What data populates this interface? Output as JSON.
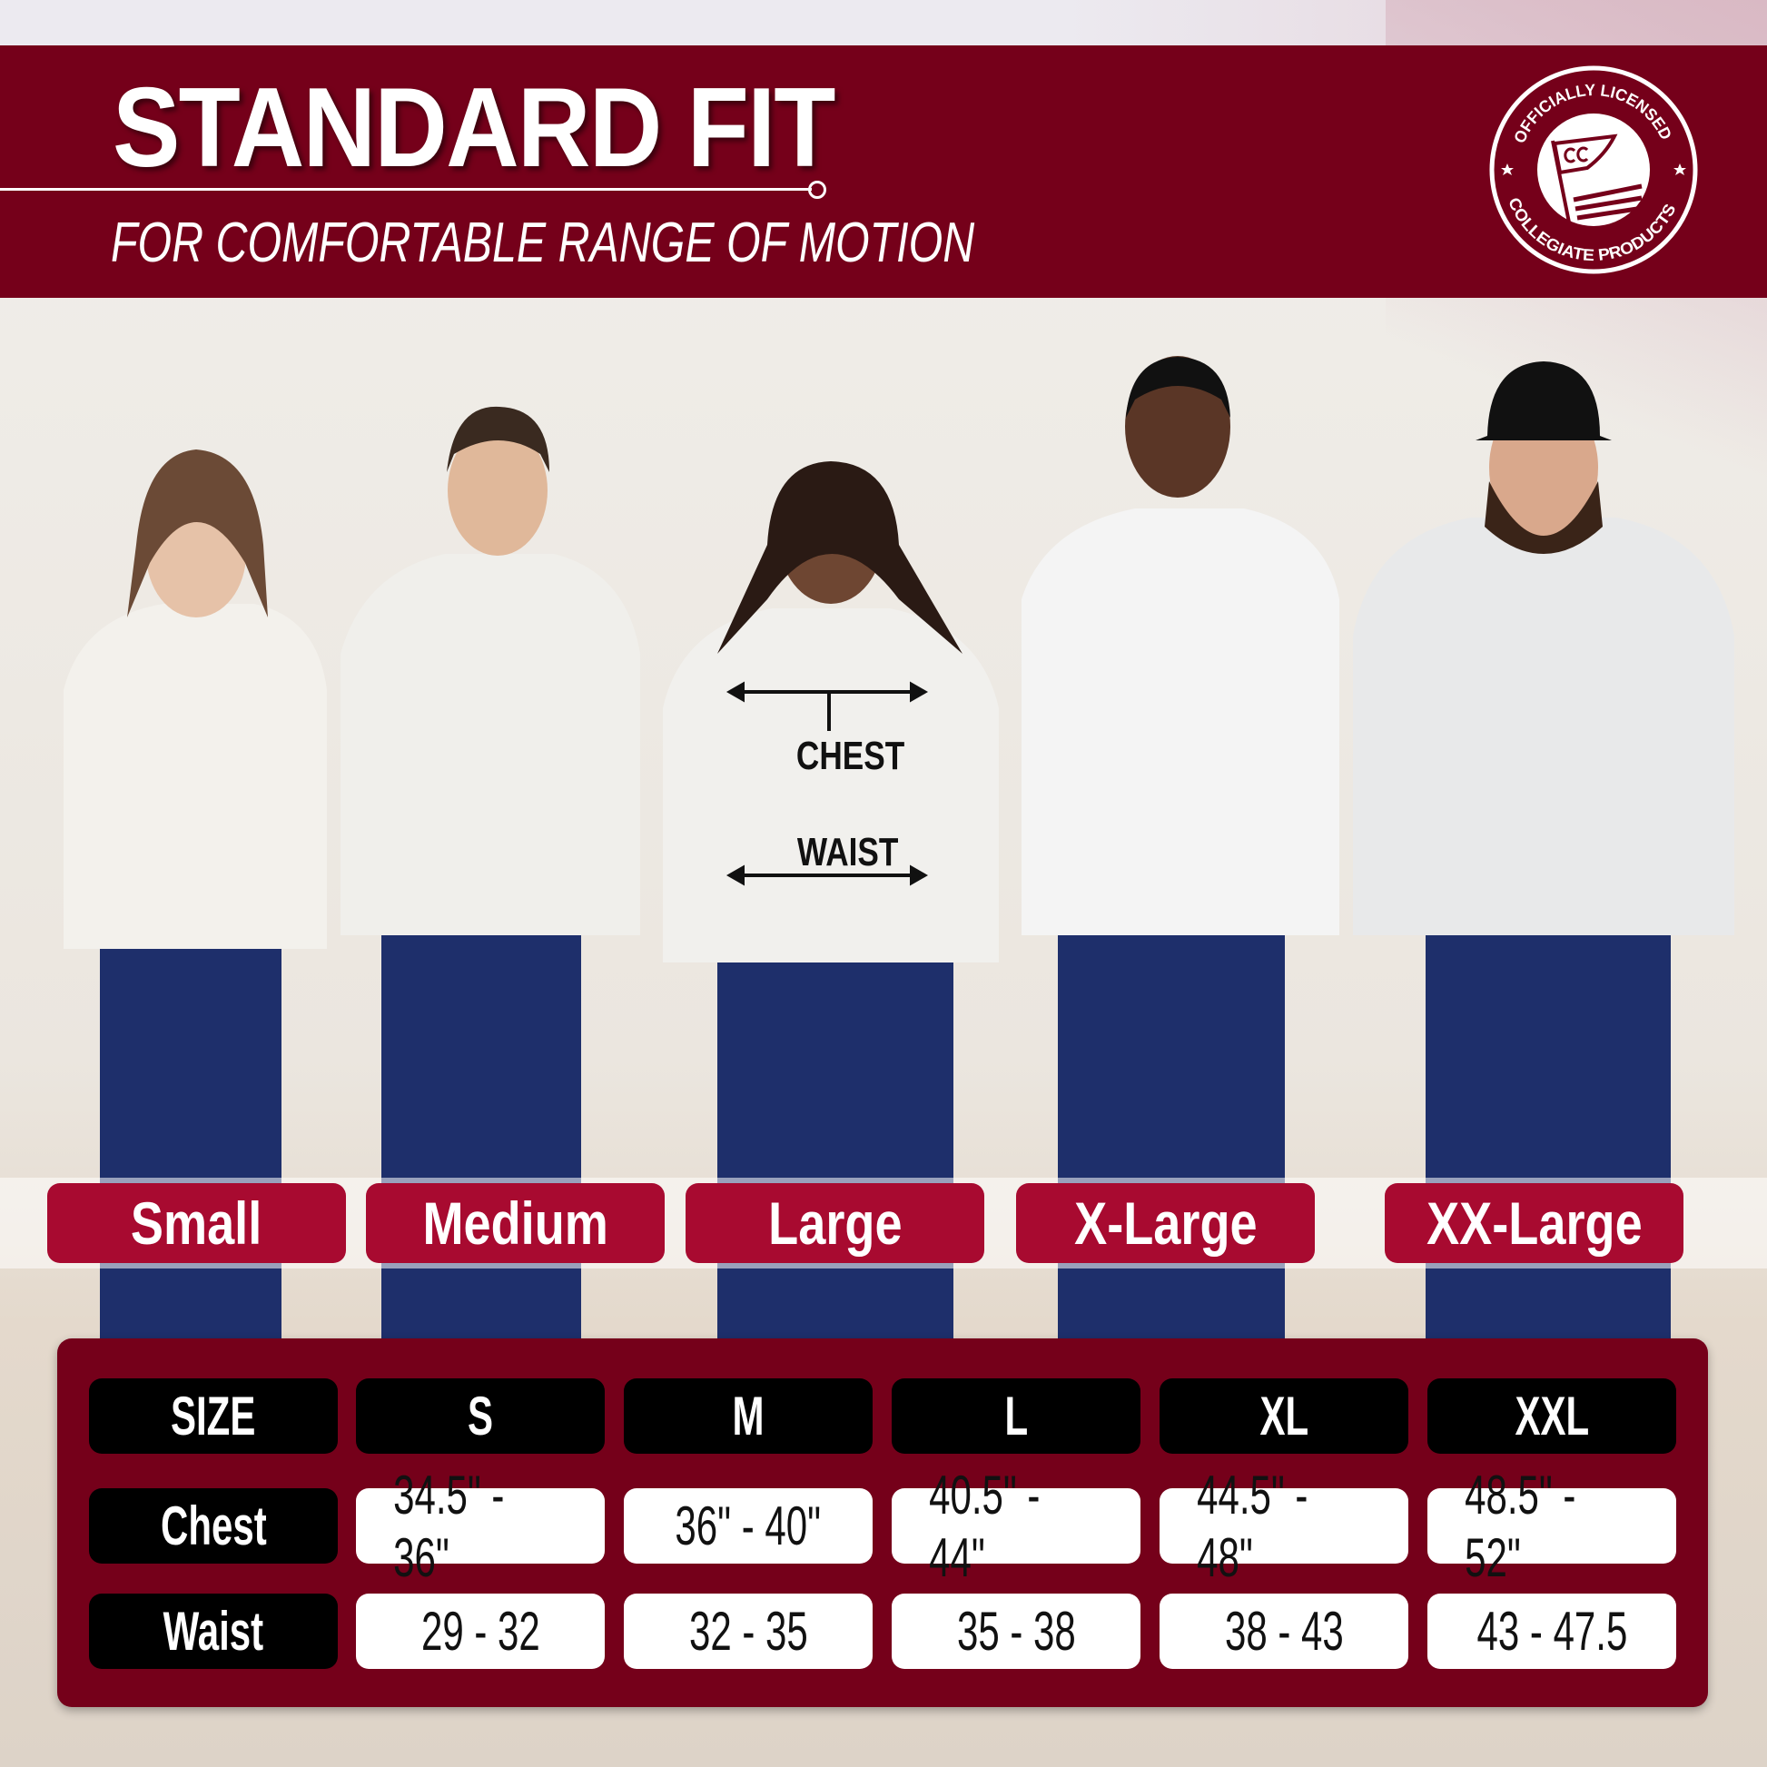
{
  "header": {
    "title": "STANDARD FIT",
    "subtitle": "FOR COMFORTABLE RANGE OF MOTION",
    "color": "#75001a"
  },
  "logo": {
    "top_text": "OFFICIALLY LICENSED",
    "bottom_text": "COLLEGIATE PRODUCTS",
    "flag_text": "CC"
  },
  "annotations": {
    "chest": "CHEST",
    "waist": "WAIST"
  },
  "size_labels": [
    "Small",
    "Medium",
    "Large",
    "X-Large",
    "XX-Large"
  ],
  "accent_color": "#a80a30",
  "size_table": {
    "headers": [
      "SIZE",
      "S",
      "M",
      "L",
      "XL",
      "XXL"
    ],
    "rows": [
      {
        "label": "Chest",
        "values": [
          "34.5\" - 36\"",
          "36\" - 40\"",
          "40.5\" - 44\"",
          "44.5\" - 48\"",
          "48.5\" - 52\""
        ]
      },
      {
        "label": "Waist",
        "values": [
          "29 - 32",
          "32 - 35",
          "35 - 38",
          "38 - 43",
          "43 - 47.5"
        ]
      }
    ]
  }
}
